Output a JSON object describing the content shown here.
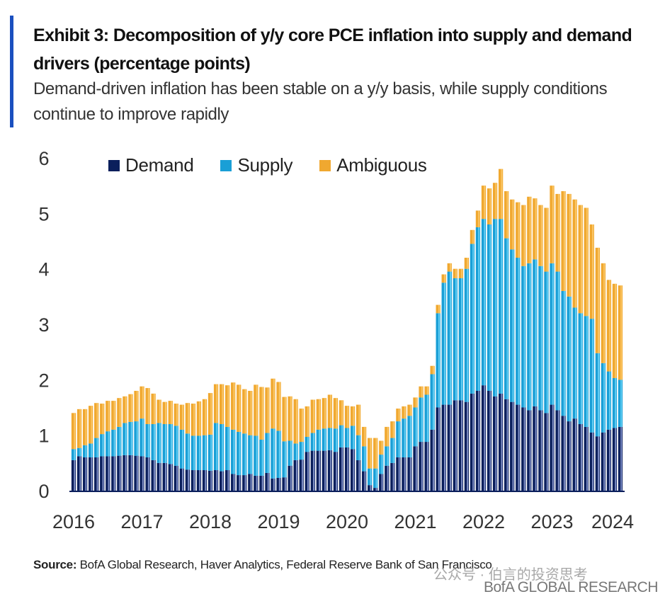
{
  "header": {
    "title": "Exhibit 3: Decomposition of y/y core PCE inflation into supply and demand drivers (percentage points)",
    "subtitle": "Demand-driven inflation has been stable on a y/y basis, while supply conditions continue to improve rapidly",
    "accent_color": "#1a4fbf"
  },
  "footer": {
    "source_label": "Source:",
    "source_text": "BofA Global Research, Haver Analytics, Federal Reserve Bank of San Francisco",
    "watermark": "公众号 · 伯言的投资思考",
    "brand": "BofA GLOBAL RESEARCH"
  },
  "chart_data": {
    "type": "bar",
    "stacked": true,
    "title": "Decomposition of y/y core PCE inflation into supply and demand drivers (percentage points)",
    "xlabel": "",
    "ylabel": "",
    "ylim": [
      0,
      6
    ],
    "yticks": [
      "0",
      "1",
      "2",
      "3",
      "4",
      "5",
      "6"
    ],
    "xticks": [
      "2016",
      "2017",
      "2018",
      "2019",
      "2020",
      "2021",
      "2022",
      "2023",
      "2024"
    ],
    "x_start": "2016-01",
    "frequency": "monthly",
    "grid": false,
    "legend_position": "top",
    "series": [
      {
        "name": "Demand",
        "color": "#0b1f5c",
        "values": [
          0.55,
          0.62,
          0.6,
          0.6,
          0.6,
          0.62,
          0.62,
          0.62,
          0.63,
          0.64,
          0.64,
          0.63,
          0.62,
          0.6,
          0.55,
          0.5,
          0.5,
          0.48,
          0.45,
          0.4,
          0.38,
          0.37,
          0.37,
          0.37,
          0.36,
          0.37,
          0.35,
          0.37,
          0.3,
          0.28,
          0.28,
          0.3,
          0.27,
          0.27,
          0.32,
          0.22,
          0.23,
          0.24,
          0.45,
          0.55,
          0.56,
          0.7,
          0.72,
          0.72,
          0.72,
          0.73,
          0.7,
          0.78,
          0.78,
          0.75,
          0.55,
          0.35,
          0.1,
          0.05,
          0.3,
          0.45,
          0.5,
          0.6,
          0.6,
          0.6,
          0.8,
          0.88,
          0.88,
          1.1,
          1.5,
          1.55,
          1.55,
          1.63,
          1.63,
          1.6,
          1.75,
          1.8,
          1.9,
          1.8,
          1.7,
          1.75,
          1.65,
          1.6,
          1.55,
          1.5,
          1.45,
          1.52,
          1.45,
          1.4,
          1.55,
          1.45,
          1.35,
          1.25,
          1.3,
          1.2,
          1.15,
          1.05,
          0.98,
          1.05,
          1.1,
          1.13,
          1.15
        ]
      },
      {
        "name": "Supply",
        "color": "#1a9fd6",
        "values": [
          0.2,
          0.15,
          0.22,
          0.25,
          0.35,
          0.4,
          0.45,
          0.48,
          0.52,
          0.58,
          0.6,
          0.62,
          0.68,
          0.6,
          0.65,
          0.72,
          0.7,
          0.72,
          0.72,
          0.7,
          0.65,
          0.62,
          0.62,
          0.63,
          0.65,
          0.85,
          0.85,
          0.78,
          0.8,
          0.78,
          0.75,
          0.7,
          0.72,
          0.65,
          0.72,
          0.9,
          0.85,
          0.65,
          0.45,
          0.3,
          0.32,
          0.27,
          0.32,
          0.38,
          0.4,
          0.4,
          0.42,
          0.4,
          0.35,
          0.42,
          0.45,
          0.45,
          0.3,
          0.35,
          0.35,
          0.35,
          0.45,
          0.65,
          0.7,
          0.75,
          0.7,
          0.8,
          0.85,
          1.0,
          1.7,
          2.2,
          2.4,
          2.2,
          2.2,
          2.4,
          2.7,
          2.95,
          3.0,
          3.0,
          3.2,
          3.15,
          2.9,
          2.75,
          2.65,
          2.55,
          2.65,
          2.65,
          2.6,
          2.55,
          2.55,
          2.5,
          2.25,
          2.25,
          2.0,
          2.0,
          2.0,
          2.05,
          1.5,
          1.25,
          1.05,
          0.9,
          0.85
        ]
      },
      {
        "name": "Ambiguous",
        "color": "#f0a830",
        "values": [
          0.65,
          0.7,
          0.65,
          0.68,
          0.63,
          0.55,
          0.55,
          0.52,
          0.52,
          0.48,
          0.5,
          0.55,
          0.58,
          0.65,
          0.55,
          0.42,
          0.4,
          0.42,
          0.4,
          0.45,
          0.55,
          0.58,
          0.62,
          0.65,
          0.75,
          0.7,
          0.72,
          0.75,
          0.85,
          0.85,
          0.8,
          0.8,
          0.92,
          0.95,
          0.82,
          0.9,
          0.88,
          0.8,
          0.8,
          0.8,
          0.6,
          0.55,
          0.6,
          0.55,
          0.55,
          0.6,
          0.55,
          0.45,
          0.4,
          0.35,
          0.55,
          0.35,
          0.55,
          0.55,
          0.25,
          0.35,
          0.3,
          0.23,
          0.22,
          0.2,
          0.18,
          0.2,
          0.15,
          0.15,
          0.15,
          0.15,
          0.15,
          0.17,
          0.17,
          0.2,
          0.25,
          0.3,
          0.6,
          0.65,
          0.65,
          0.9,
          0.85,
          0.9,
          1.0,
          1.1,
          1.2,
          1.1,
          1.1,
          1.15,
          1.4,
          1.4,
          1.8,
          1.85,
          1.95,
          1.95,
          1.95,
          1.7,
          1.9,
          1.8,
          1.65,
          1.7,
          1.7
        ]
      }
    ]
  }
}
